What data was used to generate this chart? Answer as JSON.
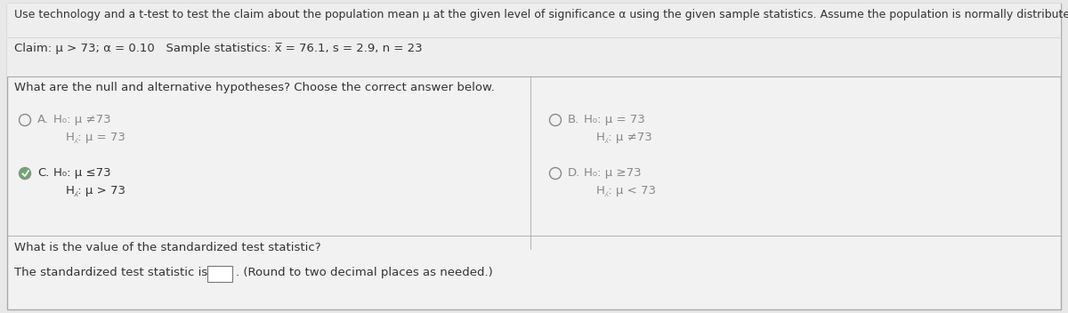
{
  "bg_color": "#e8e8e8",
  "content_bg": "#f0f0f0",
  "top_bg": "#f0f0f0",
  "border_color": "#aaaaaa",
  "title_text": "Use technology and a t-test to test the claim about the population mean μ at the given level of significance α using the given sample statistics. Assume the population is normally distributed.",
  "claim_text": "Claim: μ > 73; α = 0.10   Sample statistics: x̅ = 76.1, s = 2.9, n = 23",
  "question1": "What are the null and alternative hypotheses? Choose the correct answer below.",
  "opt_A_label": "A.",
  "opt_A_line1": "H₀: μ ≠73",
  "opt_A_line2": "H⁁: μ = 73",
  "opt_B_label": "B.",
  "opt_B_line1": "H₀: μ = 73",
  "opt_B_line2": "H⁁: μ ≠73",
  "opt_C_label": "C.",
  "opt_C_line1": "H₀: μ ≤73",
  "opt_C_line2": "H⁁: μ > 73",
  "opt_D_label": "D.",
  "opt_D_line1": "H₀: μ ≥73",
  "opt_D_line2": "H⁁: μ < 73",
  "question2": "What is the value of the standardized test statistic?",
  "question3_pre": "The standardized test statistic is",
  "question3_post": ". (Round to two decimal places as needed.)",
  "selected": "C",
  "font_size_title": 9.0,
  "font_size_body": 9.5,
  "font_size_options": 9.5,
  "radio_color": "#888888",
  "text_color": "#333333",
  "text_color_light": "#888888"
}
